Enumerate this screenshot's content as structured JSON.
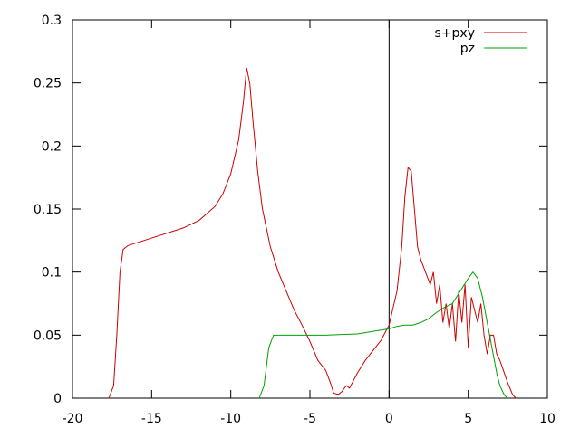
{
  "chart_data": {
    "type": "line",
    "xlim": [
      -20,
      10
    ],
    "xticks": [
      -20,
      -15,
      -10,
      -5,
      0,
      5,
      10
    ],
    "ylim": [
      0,
      0.3
    ],
    "yticks": [
      0,
      0.05,
      0.1,
      0.15,
      0.2,
      0.25,
      0.3
    ],
    "x_zeroaxis": true,
    "legend": "top-right",
    "series": [
      {
        "name": "s+pxy",
        "color": "#cc0000",
        "x": [
          -17.7,
          -17.4,
          -17.2,
          -17,
          -16.8,
          -16.5,
          -15,
          -13,
          -12,
          -11,
          -10.5,
          -10,
          -9.5,
          -9.2,
          -9,
          -8.8,
          -8.6,
          -8.3,
          -8,
          -7.5,
          -7,
          -6.5,
          -6,
          -5.5,
          -5,
          -4.5,
          -4,
          -3.7,
          -3.5,
          -3.2,
          -3,
          -2.7,
          -2.5,
          -2,
          -1.5,
          -1,
          -0.5,
          0,
          0.5,
          0.8,
          1,
          1.2,
          1.4,
          1.6,
          1.8,
          2,
          2.3,
          2.6,
          2.8,
          3,
          3.2,
          3.4,
          3.6,
          3.8,
          4,
          4.2,
          4.4,
          4.6,
          4.8,
          5,
          5.2,
          5.4,
          5.6,
          5.8,
          6,
          6.2,
          6.4,
          6.6,
          6.8,
          7,
          7.5,
          7.8,
          8
        ],
        "values": [
          0,
          0.01,
          0.05,
          0.1,
          0.118,
          0.121,
          0.127,
          0.135,
          0.141,
          0.152,
          0.162,
          0.178,
          0.205,
          0.235,
          0.262,
          0.25,
          0.22,
          0.18,
          0.15,
          0.12,
          0.1,
          0.085,
          0.07,
          0.058,
          0.045,
          0.03,
          0.022,
          0.012,
          0.004,
          0.003,
          0.005,
          0.01,
          0.008,
          0.02,
          0.03,
          0.038,
          0.046,
          0.058,
          0.085,
          0.12,
          0.16,
          0.183,
          0.18,
          0.15,
          0.12,
          0.11,
          0.1,
          0.09,
          0.1,
          0.075,
          0.09,
          0.06,
          0.075,
          0.055,
          0.075,
          0.045,
          0.085,
          0.06,
          0.09,
          0.04,
          0.08,
          0.07,
          0.06,
          0.075,
          0.05,
          0.035,
          0.05,
          0.05,
          0.035,
          0.03,
          0.012,
          0.003,
          0
        ]
      },
      {
        "name": "pz",
        "color": "#00a000",
        "x": [
          -8.2,
          -7.9,
          -7.6,
          -7.3,
          -6,
          -4,
          -2,
          -1,
          0,
          0.5,
          1,
          1.5,
          2,
          2.5,
          3,
          3.5,
          4,
          4.5,
          5,
          5.3,
          5.6,
          5.9,
          6.2,
          6.5,
          6.8,
          7,
          7.3,
          7.5
        ],
        "values": [
          0,
          0.01,
          0.04,
          0.05,
          0.05,
          0.05,
          0.051,
          0.053,
          0.055,
          0.057,
          0.058,
          0.058,
          0.06,
          0.063,
          0.068,
          0.072,
          0.075,
          0.085,
          0.095,
          0.1,
          0.095,
          0.08,
          0.06,
          0.04,
          0.02,
          0.01,
          0.002,
          0
        ]
      }
    ]
  }
}
